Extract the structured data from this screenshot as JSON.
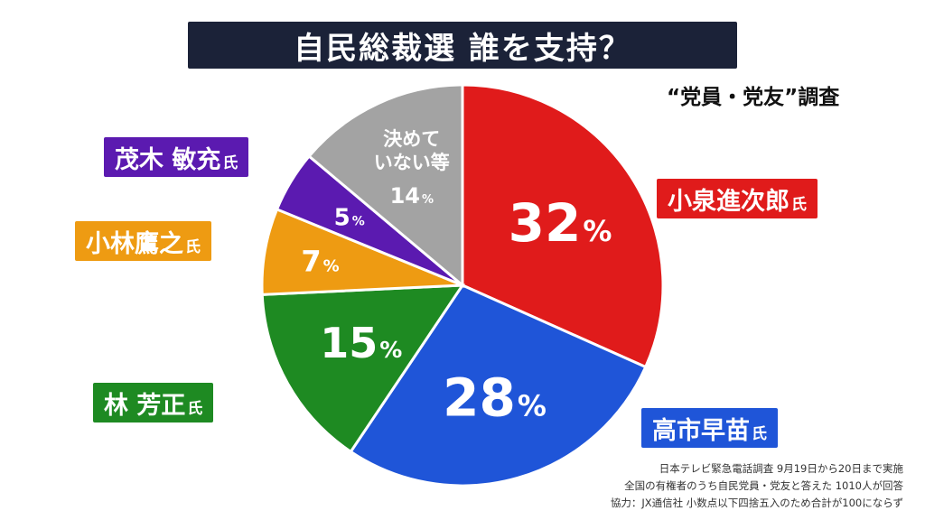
{
  "title": "自民総裁選 誰を支持？",
  "survey_label": "“党員・党友”調査",
  "chart_data": {
    "type": "pie",
    "unit": "%",
    "slices": [
      {
        "label": "小泉進次郎",
        "suffix": "氏",
        "value": 32,
        "color": "#e01b1b"
      },
      {
        "label": "高市早苗",
        "suffix": "氏",
        "value": 28,
        "color": "#1f55d8"
      },
      {
        "label": "林 芳正",
        "suffix": "氏",
        "value": 15,
        "color": "#1e8a22"
      },
      {
        "label": "小林鷹之",
        "suffix": "氏",
        "value": 7,
        "color": "#ee9b12"
      },
      {
        "label": "茂木 敏充",
        "suffix": "氏",
        "value": 5,
        "color": "#5b1ab0"
      },
      {
        "label": "決めていない等",
        "label_lines": [
          "決めて",
          "いない等"
        ],
        "suffix": "",
        "value": 14,
        "color": "#a3a3a3"
      }
    ]
  },
  "notes": [
    "日本テレビ緊急電話調査 9月19日から20日まで実施",
    "全国の有権者のうち自民党員・党友と答えた 1010人が回答",
    "協力：JX通信社 小数点以下四捨五入のため合計が100にならず"
  ]
}
